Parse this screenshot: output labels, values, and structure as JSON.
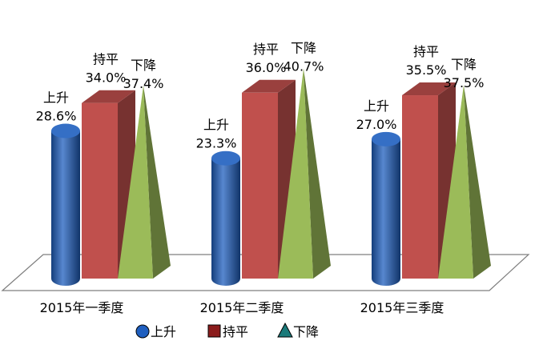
{
  "chart_data": {
    "type": "bar",
    "style": "3d-mixed-shapes",
    "categories": [
      "2015年一季度",
      "2015年二季度",
      "2015年三季度"
    ],
    "series": [
      {
        "name": "上升",
        "shape": "cylinder",
        "color": "#1f5fbf",
        "values": [
          28.6,
          23.3,
          27.0
        ],
        "value_labels": [
          "28.6%",
          "23.3%",
          "27.0%"
        ]
      },
      {
        "name": "持平",
        "shape": "box",
        "color": "#c0504d",
        "values": [
          34.0,
          36.0,
          35.5
        ],
        "value_labels": [
          "34.0%",
          "36.0%",
          "35.5%"
        ]
      },
      {
        "name": "下降",
        "shape": "pyramid",
        "color": "#9bbb59",
        "values": [
          37.4,
          40.7,
          37.5
        ],
        "value_labels": [
          "37.4%",
          "40.7%",
          "37.5%"
        ]
      }
    ],
    "legend": {
      "position": "bottom",
      "items": [
        {
          "label": "上升",
          "marker": "circle",
          "color": "#1f5fbf"
        },
        {
          "label": "持平",
          "marker": "square",
          "color": "#8b1c1c"
        },
        {
          "label": "下降",
          "marker": "triangle",
          "color": "#1a7a7a"
        }
      ]
    },
    "ylim": [
      0,
      45
    ],
    "grid": false
  }
}
